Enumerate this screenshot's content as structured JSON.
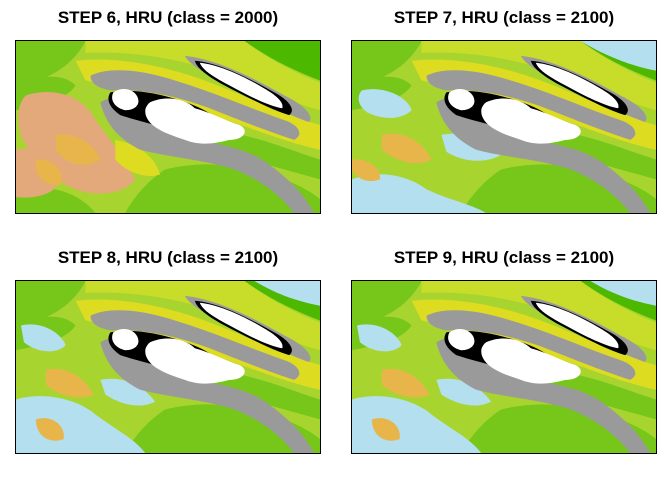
{
  "panels": [
    {
      "title": "STEP 6, HRU (class = 2000)",
      "variant": "step6"
    },
    {
      "title": "STEP 7, HRU (class = 2100)",
      "variant": "step7"
    },
    {
      "title": "STEP 8, HRU (class = 2100)",
      "variant": "step8"
    },
    {
      "title": "STEP 9, HRU (class = 2100)",
      "variant": "step9"
    }
  ],
  "colors": {
    "green_dark": "#4db800",
    "green": "#77c61a",
    "green_light": "#a8d430",
    "yellow_green": "#c8dc2a",
    "yellow": "#dedc20",
    "orange": "#e8b54a",
    "tan": "#e3a97a",
    "light_blue": "#b4dfef",
    "gray": "#9a9a9a",
    "black": "#000000",
    "white": "#ffffff"
  }
}
